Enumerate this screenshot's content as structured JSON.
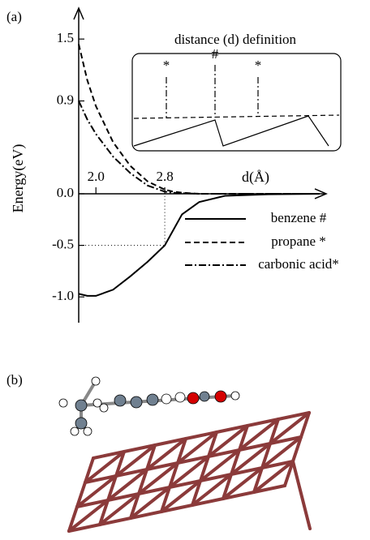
{
  "chart_data": {
    "type": "line",
    "panel_labels": [
      "(a)",
      "(b)"
    ],
    "ylabel": "Energy(eV)",
    "xlabel": "d(Å)",
    "x": [
      1.8,
      1.9,
      2.0,
      2.2,
      2.4,
      2.6,
      2.8,
      2.9,
      3.0,
      3.2,
      3.5,
      4.0,
      4.6
    ],
    "series": [
      {
        "name": "benzene #",
        "color": "#000000",
        "dash": "solid",
        "values": [
          -0.97,
          -0.99,
          -0.99,
          -0.93,
          -0.8,
          -0.66,
          -0.5,
          -0.35,
          -0.2,
          -0.08,
          -0.02,
          -0.005,
          0
        ]
      },
      {
        "name": "propane *",
        "color": "#000000",
        "dash": "dashed",
        "values": [
          1.45,
          1.1,
          0.85,
          0.5,
          0.27,
          0.12,
          0.04,
          0.02,
          0.01,
          0,
          0,
          0,
          0
        ]
      },
      {
        "name": "carbonic acid*",
        "color": "#000000",
        "dash": "dashdot",
        "values": [
          0.9,
          0.72,
          0.58,
          0.36,
          0.2,
          0.08,
          0.02,
          0.01,
          0.005,
          0,
          0,
          0,
          0
        ]
      }
    ],
    "xlim": [
      1.8,
      4.6
    ],
    "ylim": [
      -1.25,
      1.8
    ],
    "xticks": [
      {
        "value": 2,
        "label": "2.0"
      },
      2.8
    ],
    "yticks": [
      1.5,
      0.9,
      {
        "value": 0,
        "label": "0.0"
      },
      -0.5,
      {
        "value": -1,
        "label": "-1.0"
      }
    ],
    "legend": "lower right",
    "inset": {
      "title": "distance (d) definition",
      "markers": [
        "*",
        "#",
        "*"
      ]
    }
  }
}
